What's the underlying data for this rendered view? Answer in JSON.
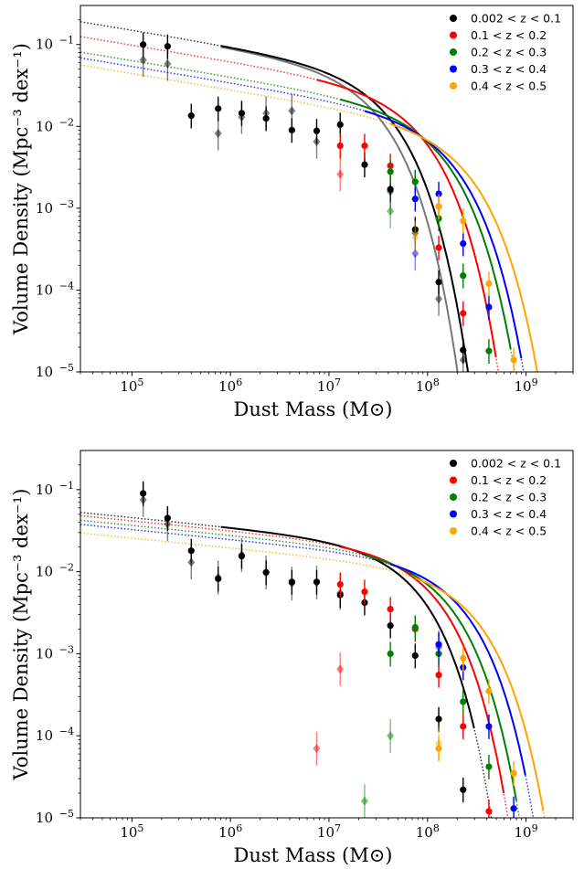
{
  "chart_data": [
    {
      "type": "scatter",
      "xlabel": "Dust Mass (M⊙)",
      "ylabel": "Volume Density (Mpc⁻³ dex⁻¹)",
      "xscale": "log",
      "yscale": "log",
      "xlim": [
        30000,
        3000000000
      ],
      "ylim": [
        1e-05,
        0.3
      ],
      "xticks": [
        {
          "value": 100000,
          "base": "10",
          "exp": "5"
        },
        {
          "value": 1000000,
          "base": "10",
          "exp": "6"
        },
        {
          "value": 10000000,
          "base": "10",
          "exp": "7"
        },
        {
          "value": 100000000,
          "base": "10",
          "exp": "8"
        },
        {
          "value": 1000000000,
          "base": "10",
          "exp": "9"
        }
      ],
      "yticks": [
        {
          "value": 1e-05,
          "base": "10",
          "exp": "−5"
        },
        {
          "value": 0.0001,
          "base": "10",
          "exp": "−4"
        },
        {
          "value": 0.001,
          "base": "10",
          "exp": "−3"
        },
        {
          "value": 0.01,
          "base": "10",
          "exp": "−2"
        },
        {
          "value": 0.1,
          "base": "10",
          "exp": "−1"
        }
      ],
      "legend_position": "top-right",
      "grid": false,
      "series": [
        {
          "name": "0.002 < z < 0.1",
          "color": "#000000",
          "fit": {
            "phi": 0.0205,
            "mstar": 32000000,
            "alpha": -1.2,
            "xmin": 800000,
            "xmax": 300000000
          },
          "fit_alt": {
            "color": "#777777",
            "phi": 0.021,
            "mstar": 25000000,
            "alpha": -1.2,
            "xmin": 800000,
            "xmax": 300000000
          },
          "points": [
            [
              130000,
              0.1
            ],
            [
              230000,
              0.095
            ],
            [
              400000,
              0.0135
            ],
            [
              750000,
              0.0165
            ],
            [
              1300000,
              0.0145
            ],
            [
              2300000,
              0.0125
            ],
            [
              4200000,
              0.009
            ],
            [
              7500000,
              0.0088
            ],
            [
              13000000,
              0.0105
            ],
            [
              23000000,
              0.0034
            ],
            [
              42000000,
              0.0017
            ],
            [
              75000000,
              0.00055
            ],
            [
              130000000,
              0.000125
            ],
            [
              230000000,
              1.85e-05
            ]
          ],
          "points_alt": [
            [
              130000,
              0.065
            ],
            [
              230000,
              0.058
            ],
            [
              750000,
              0.0082
            ],
            [
              1300000,
              0.013
            ],
            [
              2300000,
              0.0145
            ],
            [
              4200000,
              0.0155
            ],
            [
              7500000,
              0.0065
            ],
            [
              42000000,
              0.0016
            ],
            [
              75000000,
              0.0005
            ],
            [
              130000000,
              7.8e-05
            ],
            [
              230000000,
              1.4e-05
            ]
          ]
        },
        {
          "name": "0.1 < z < 0.2",
          "color": "#ff0000",
          "fit": {
            "phi": 0.0115,
            "mstar": 70000000,
            "alpha": -1.2,
            "xmin": 7500000,
            "xmax": 500000000
          },
          "points": [
            [
              13000000,
              0.0058
            ],
            [
              23000000,
              0.0058
            ],
            [
              42000000,
              0.0033
            ],
            [
              75000000,
              0.0021
            ],
            [
              130000000,
              0.00033
            ],
            [
              230000000,
              5.2e-05
            ]
          ],
          "points_alt": [
            [
              13000000,
              0.0026
            ]
          ]
        },
        {
          "name": "0.2 < z < 0.3",
          "color": "#008000",
          "fit": {
            "phi": 0.0068,
            "mstar": 110000000,
            "alpha": -1.2,
            "xmin": 13000000,
            "xmax": 700000000
          },
          "points": [
            [
              42000000,
              0.0028
            ],
            [
              75000000,
              0.0021
            ],
            [
              130000000,
              0.00075
            ],
            [
              230000000,
              0.00015
            ],
            [
              420000000,
              1.8e-05
            ]
          ],
          "points_alt": [
            [
              42000000,
              0.00092
            ]
          ]
        },
        {
          "name": "0.3 < z < 0.4",
          "color": "#0000ff",
          "fit": {
            "phi": 0.0055,
            "mstar": 140000000,
            "alpha": -1.2,
            "xmin": 23000000,
            "xmax": 900000000
          },
          "points": [
            [
              75000000,
              0.0013
            ],
            [
              130000000,
              0.0015
            ],
            [
              230000000,
              0.00037
            ],
            [
              420000000,
              6.2e-05
            ]
          ],
          "points_alt": [
            [
              75000000,
              0.00028
            ]
          ]
        },
        {
          "name": "0.4 < z < 0.5",
          "color": "#ffa500",
          "fit": {
            "phi": 0.0042,
            "mstar": 200000000,
            "alpha": -1.2,
            "xmin": 42000000,
            "xmax": 1500000000
          },
          "points": [
            [
              130000000,
              0.00105
            ],
            [
              230000000,
              0.0007
            ],
            [
              420000000,
              0.00012
            ],
            [
              750000000,
              1.4e-05
            ]
          ],
          "points_alt": [
            [
              75000000,
              0.00044
            ]
          ]
        }
      ]
    },
    {
      "type": "scatter",
      "xlabel": "Dust Mass (M⊙)",
      "ylabel": "Volume Density (Mpc⁻³ dex⁻¹)",
      "xscale": "log",
      "yscale": "log",
      "xlim": [
        30000,
        3000000000
      ],
      "ylim": [
        1e-05,
        0.3
      ],
      "xticks": [
        {
          "value": 100000,
          "base": "10",
          "exp": "5"
        },
        {
          "value": 1000000,
          "base": "10",
          "exp": "6"
        },
        {
          "value": 10000000,
          "base": "10",
          "exp": "7"
        },
        {
          "value": 100000000,
          "base": "10",
          "exp": "8"
        },
        {
          "value": 1000000000,
          "base": "10",
          "exp": "9"
        }
      ],
      "yticks": [
        {
          "value": 1e-05,
          "base": "10",
          "exp": "−5"
        },
        {
          "value": 0.0001,
          "base": "10",
          "exp": "−4"
        },
        {
          "value": 0.001,
          "base": "10",
          "exp": "−3"
        },
        {
          "value": 0.01,
          "base": "10",
          "exp": "−2"
        },
        {
          "value": 0.1,
          "base": "10",
          "exp": "−1"
        }
      ],
      "legend_position": "top-right",
      "grid": false,
      "series": [
        {
          "name": "0.002 < z < 0.1",
          "color": "#000000",
          "fit": {
            "phi": 0.0092,
            "mstar": 60000000,
            "alpha": -1.12,
            "xmin": 800000,
            "xmax": 300000000
          },
          "points": [
            [
              130000,
              0.09
            ],
            [
              230000,
              0.045
            ],
            [
              400000,
              0.018
            ],
            [
              750000,
              0.0082
            ],
            [
              1300000,
              0.0155
            ],
            [
              2300000,
              0.0098
            ],
            [
              4200000,
              0.0075
            ],
            [
              7500000,
              0.0075
            ],
            [
              13000000,
              0.0052
            ],
            [
              23000000,
              0.0042
            ],
            [
              42000000,
              0.0022
            ],
            [
              75000000,
              0.00095
            ],
            [
              130000000,
              0.00016
            ],
            [
              230000000,
              2.2e-05
            ]
          ],
          "points_alt": [
            [
              130000,
              0.075
            ],
            [
              230000,
              0.038
            ],
            [
              400000,
              0.013
            ],
            [
              750000,
              0.0085
            ],
            [
              1300000,
              0.016
            ],
            [
              2300000,
              0.0098
            ],
            [
              4200000,
              0.0072
            ],
            [
              7500000,
              0.0074
            ],
            [
              13000000,
              0.0055
            ]
          ]
        },
        {
          "name": "0.1 < z < 0.2",
          "color": "#ff0000",
          "fit": {
            "phi": 0.008,
            "mstar": 90000000,
            "alpha": -1.12,
            "xmin": 13000000,
            "xmax": 600000000
          },
          "points": [
            [
              13000000,
              0.007
            ],
            [
              23000000,
              0.0057
            ],
            [
              42000000,
              0.0035
            ],
            [
              75000000,
              0.002
            ],
            [
              130000000,
              0.00055
            ],
            [
              230000000,
              0.00013
            ],
            [
              420000000,
              1.2e-05
            ]
          ],
          "points_alt": [
            [
              7500000,
              7e-05
            ],
            [
              13000000,
              0.00065
            ]
          ]
        },
        {
          "name": "0.2 < z < 0.3",
          "color": "#008000",
          "fit": {
            "phi": 0.0068,
            "mstar": 120000000,
            "alpha": -1.12,
            "xmin": 23000000,
            "xmax": 800000000
          },
          "points": [
            [
              42000000,
              0.001
            ],
            [
              75000000,
              0.0021
            ],
            [
              130000000,
              0.001
            ],
            [
              230000000,
              0.00026
            ],
            [
              420000000,
              4.2e-05
            ]
          ],
          "points_alt": [
            [
              23000000,
              1.6e-05
            ],
            [
              42000000,
              0.0001
            ]
          ]
        },
        {
          "name": "0.3 < z < 0.4",
          "color": "#0000ff",
          "fit": {
            "phi": 0.0058,
            "mstar": 170000000,
            "alpha": -1.12,
            "xmin": 42000000,
            "xmax": 1000000000
          },
          "points": [
            [
              130000000,
              0.0013
            ],
            [
              230000000,
              0.00068
            ],
            [
              420000000,
              0.00013
            ],
            [
              750000000,
              1.3e-05
            ]
          ],
          "points_alt": [
            [
              130000000,
              0.0012
            ]
          ]
        },
        {
          "name": "0.4 < z < 0.5",
          "color": "#ffa500",
          "fit": {
            "phi": 0.0044,
            "mstar": 230000000,
            "alpha": -1.12,
            "xmin": 75000000,
            "xmax": 1500000000
          },
          "points": [
            [
              130000000,
              7e-05
            ],
            [
              230000000,
              0.00088
            ],
            [
              420000000,
              0.00035
            ],
            [
              750000000,
              3.5e-05
            ]
          ],
          "points_alt": [
            [
              130000000,
              8e-05
            ]
          ]
        }
      ]
    }
  ]
}
